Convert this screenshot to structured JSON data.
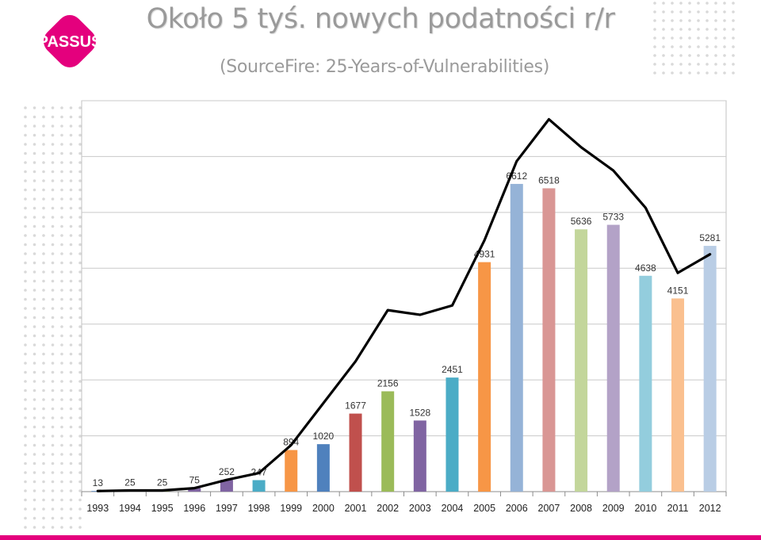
{
  "header": {
    "logo_text": "PASSUS",
    "title": "Około 5 tyś. nowych podatności r/r",
    "subtitle": "(SourceFire: 25-Years-of-Vulnerabilities)"
  },
  "colors": {
    "brand": "#e4007d",
    "title": "#9a9a9a",
    "trend_line": "#000000",
    "bar_palette": [
      "#4f81bd",
      "#c0504d",
      "#9bbb59",
      "#8064a2",
      "#4bacc6",
      "#f79646",
      "#95b3d7",
      "#d99694",
      "#c3d69b",
      "#b3a2c7",
      "#93cddd",
      "#fac08f",
      "#b9cde5"
    ]
  },
  "chart_data": {
    "type": "bar",
    "categories": [
      "1993",
      "1994",
      "1995",
      "1996",
      "1997",
      "1998",
      "1999",
      "2000",
      "2001",
      "2002",
      "2003",
      "2004",
      "2005",
      "2006",
      "2007",
      "2008",
      "2009",
      "2010",
      "2011",
      "2012"
    ],
    "values": [
      13,
      25,
      25,
      75,
      252,
      247,
      894,
      1020,
      1677,
      2156,
      1528,
      2451,
      4931,
      6612,
      6518,
      5636,
      5733,
      4638,
      4151,
      5281
    ],
    "bar_colors": [
      "#4f81bd",
      "#c0504d",
      "#9bbb59",
      "#8064a2",
      "#8064a2",
      "#4bacc6",
      "#f79646",
      "#4f81bd",
      "#c0504d",
      "#9bbb59",
      "#8064a2",
      "#4bacc6",
      "#f79646",
      "#95b3d7",
      "#d99694",
      "#c3d69b",
      "#b3a2c7",
      "#93cddd",
      "#fac08f",
      "#b9cde5"
    ],
    "trend": [
      13,
      25,
      25,
      75,
      252,
      400,
      1000,
      1900,
      2800,
      3900,
      3800,
      4000,
      5400,
      7100,
      8000,
      7400,
      6900,
      6100,
      4700,
      5100
    ],
    "ylim": [
      0,
      8400
    ],
    "gridlines": [
      1200,
      2400,
      3600,
      4800,
      6000,
      7200,
      8400
    ],
    "grid": true,
    "show_y_ticks": false
  }
}
